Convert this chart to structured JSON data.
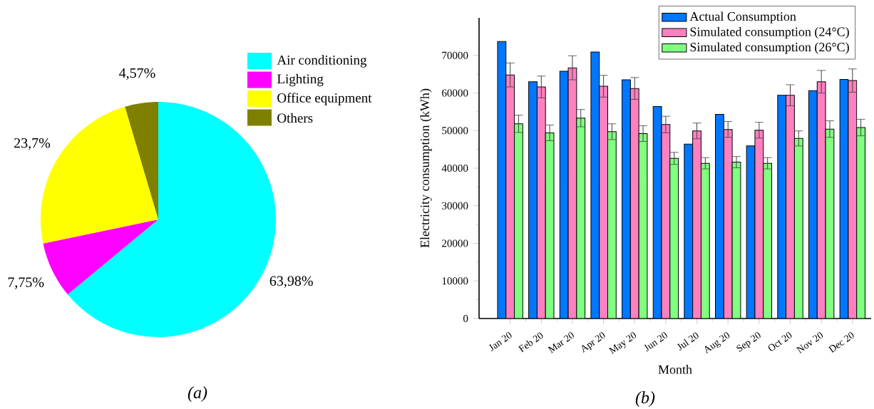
{
  "chart_data": [
    {
      "type": "pie",
      "categories": [
        "Air conditioning",
        "Lighting",
        "Office equipment",
        "Others"
      ],
      "values": [
        63.98,
        7.75,
        23.7,
        4.57
      ],
      "colors": [
        "#00ffff",
        "#ff00ff",
        "#ffff00",
        "#808000"
      ],
      "value_labels": [
        "63,98%",
        "7,75%",
        "23,7%",
        "4,57%"
      ],
      "legend": "top right",
      "annotations": [
        "(a)"
      ]
    },
    {
      "type": "bar",
      "categories": [
        "Jan 20",
        "Feb 20",
        "Mar 20",
        "Apr 20",
        "May 20",
        "Jun 20",
        "Jul 20",
        "Aug 20",
        "Sep 20",
        "Oct 20",
        "Nov 20",
        "Dec 20"
      ],
      "series": [
        {
          "name": "Actual Consumption",
          "color": "#0077ff",
          "values": [
            73700,
            63000,
            65800,
            70900,
            63500,
            56400,
            46400,
            54300,
            45900,
            59400,
            60600,
            63600
          ]
        },
        {
          "name": "Simulated consumption (24°C)",
          "color": "#ff80c0",
          "values": [
            64800,
            61600,
            66700,
            61800,
            61200,
            51600,
            49900,
            50300,
            50100,
            59400,
            63000,
            63300
          ],
          "errors": [
            3200,
            2900,
            3200,
            2900,
            2900,
            2200,
            2100,
            2100,
            2100,
            2800,
            3000,
            3100
          ]
        },
        {
          "name": "Simulated consumption (26°C)",
          "color": "#80ff80",
          "values": [
            51800,
            49400,
            53300,
            49700,
            49200,
            42600,
            41300,
            41600,
            41300,
            47900,
            50400,
            50800
          ],
          "errors": [
            2300,
            2100,
            2300,
            2100,
            2100,
            1600,
            1500,
            1500,
            1500,
            2000,
            2200,
            2200
          ]
        }
      ],
      "ylim": [
        0,
        80000
      ],
      "yticks": [
        0,
        10000,
        20000,
        30000,
        40000,
        50000,
        60000,
        70000
      ],
      "xlabel": "Month",
      "ylabel": "Electricity consumption (kWh)",
      "legend": "top right",
      "annotations": [
        "(b)"
      ]
    }
  ]
}
